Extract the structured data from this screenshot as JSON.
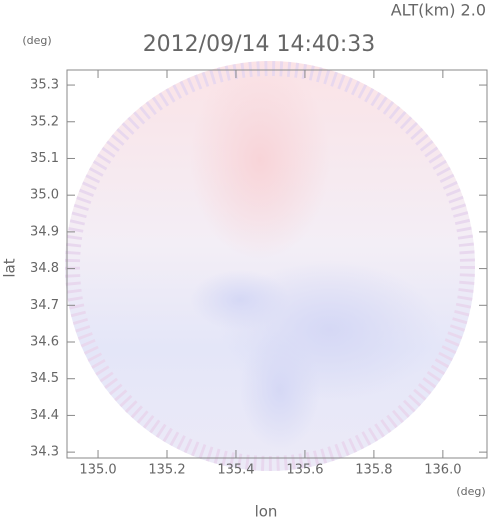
{
  "chart_data": {
    "type": "radar-image",
    "title": "2012/09/14 14:40:33",
    "subtitle": "ALT(km) 2.0",
    "x_label": "lon",
    "x_unit": "(deg)",
    "y_label": "lat",
    "y_unit": "(deg)",
    "xlim": [
      134.91,
      136.128
    ],
    "ylim": [
      34.284,
      35.341
    ],
    "xticks": [
      {
        "value": 135,
        "label": "135.0"
      },
      135.2,
      135.4,
      135.6,
      135.8,
      {
        "value": 136,
        "label": "136.0"
      }
    ],
    "yticks": [
      34.3,
      34.4,
      34.5,
      34.6,
      34.7,
      34.8,
      34.9,
      {
        "value": 35,
        "label": "35.0"
      },
      35.1,
      35.2,
      35.3
    ]
  }
}
